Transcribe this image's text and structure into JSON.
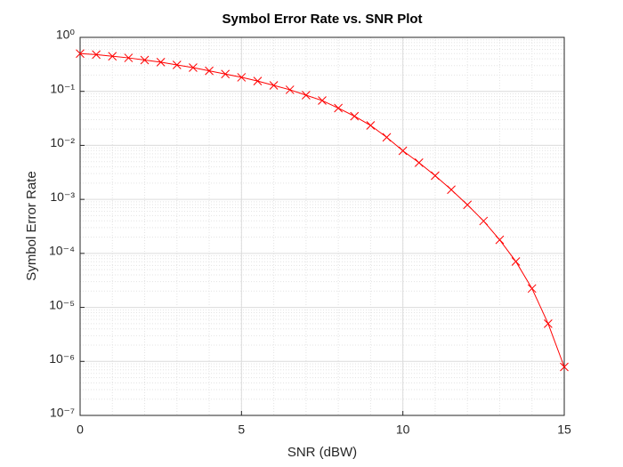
{
  "chart_data": {
    "type": "line",
    "title": "Symbol Error Rate vs. SNR Plot",
    "xlabel": "SNR (dBW)",
    "ylabel": "Symbol Error Rate",
    "log_y": true,
    "grid": true,
    "minor_grid": true,
    "xlim": [
      0,
      15
    ],
    "xticks": [
      0,
      5,
      10,
      15
    ],
    "ylim": [
      1e-07,
      1
    ],
    "yticks": [
      {
        "value": 1e-07,
        "label": "10⁻⁷"
      },
      {
        "value": 1e-06,
        "label": "10⁻⁶"
      },
      {
        "value": 1e-05,
        "label": "10⁻⁵"
      },
      {
        "value": 0.0001,
        "label": "10⁻⁴"
      },
      {
        "value": 0.001,
        "label": "10⁻³"
      },
      {
        "value": 0.01,
        "label": "10⁻²"
      },
      {
        "value": 0.1,
        "label": "10⁻¹"
      },
      {
        "value": 1,
        "label": "10⁰"
      }
    ],
    "x": [
      0,
      0.5,
      1,
      1.5,
      2,
      2.5,
      3,
      3.5,
      4,
      4.5,
      5,
      5.5,
      6,
      6.5,
      7,
      7.5,
      8,
      8.5,
      9,
      9.5,
      10,
      10.5,
      11,
      11.5,
      12,
      12.5,
      13,
      13.5,
      14,
      14.5,
      15
    ],
    "series": [
      {
        "color": "#ff0000",
        "marker": "x",
        "values": [
          0.501,
          0.479,
          0.447,
          0.417,
          0.38,
          0.347,
          0.309,
          0.275,
          0.24,
          0.209,
          0.182,
          0.155,
          0.129,
          0.107,
          0.0851,
          0.0676,
          0.049,
          0.0347,
          0.0234,
          0.0141,
          0.00794,
          0.00479,
          0.00275,
          0.00151,
          0.000794,
          0.000398,
          0.000178,
          7.08e-05,
          2.24e-05,
          5e-06,
          7.9e-07
        ]
      }
    ]
  }
}
